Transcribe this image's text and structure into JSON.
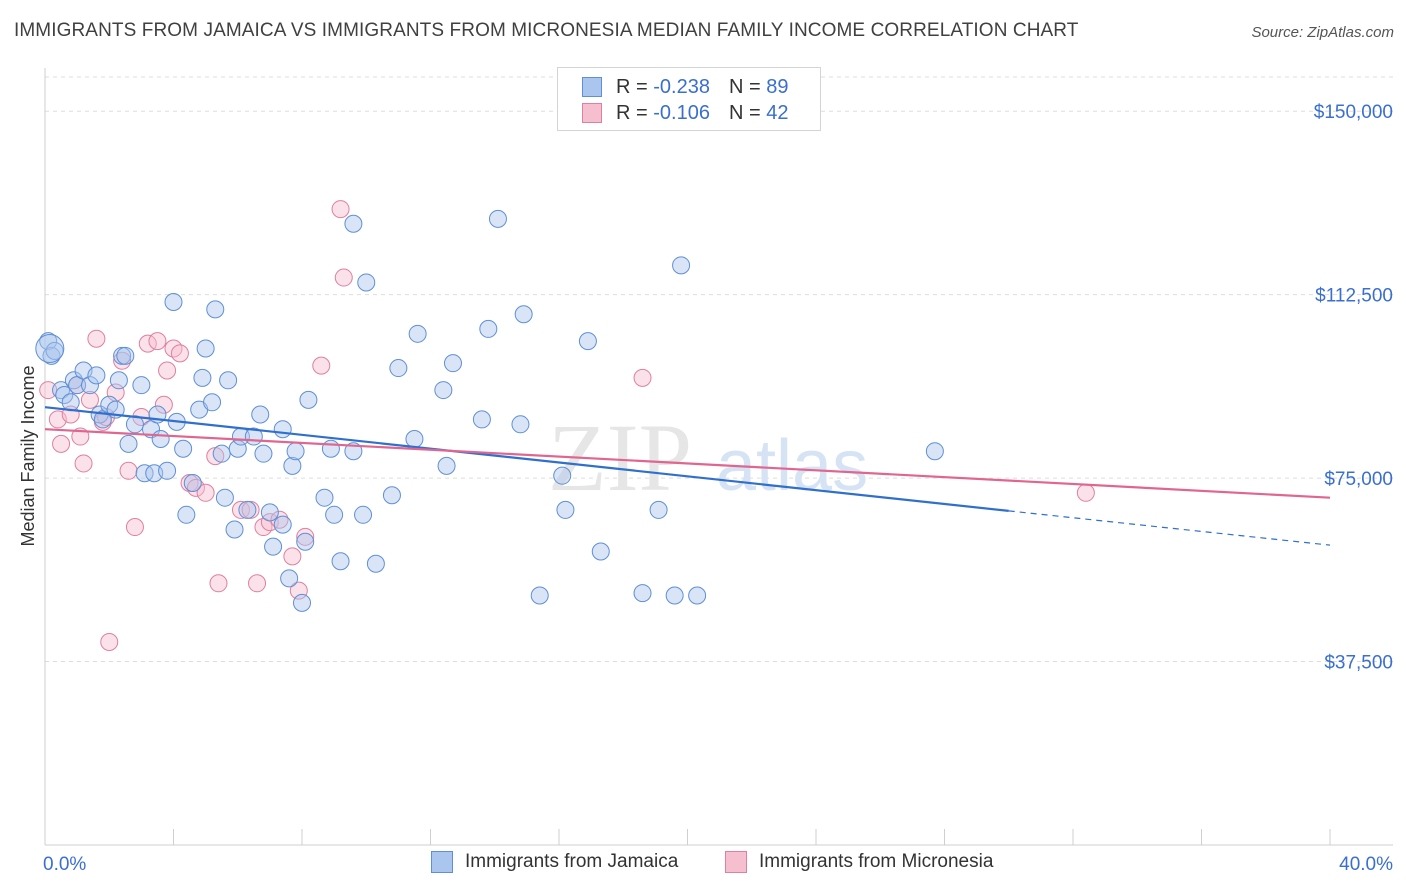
{
  "title": "IMMIGRANTS FROM JAMAICA VS IMMIGRANTS FROM MICRONESIA MEDIAN FAMILY INCOME CORRELATION CHART",
  "source": "Source: ZipAtlas.com",
  "watermark": {
    "zip": "ZIP",
    "atlas": "atlas"
  },
  "legend": {
    "rows": [
      {
        "r_label": "R =",
        "r_value": "-0.238",
        "n_label": "N =",
        "n_value": "89"
      },
      {
        "r_label": "R =",
        "r_value": "-0.106",
        "n_label": "N =",
        "n_value": "42"
      }
    ]
  },
  "colors": {
    "jamaica_fill": "#aac6ee",
    "jamaica_stroke": "#5f8fd6",
    "jamaica_line": "#2f6fce",
    "micronesia_fill": "#f6bfd0",
    "micronesia_stroke": "#e07fa0",
    "micronesia_line": "#e0668f",
    "axis_label": "#3a6fd0",
    "grid": "#dddddd"
  },
  "chart_data": {
    "type": "scatter",
    "xlabel": "",
    "ylabel": "Median Family Income",
    "x_tick_labels": {
      "min": "0.0%",
      "max": "40.0%"
    },
    "xlim": [
      0,
      40
    ],
    "ylim": [
      0,
      157000
    ],
    "y_ticks": [
      {
        "value": 37500,
        "label": "$37,500"
      },
      {
        "value": 75000,
        "label": "$75,000"
      },
      {
        "value": 112500,
        "label": "$112,500"
      },
      {
        "value": 150000,
        "label": "$150,000"
      }
    ],
    "grid": true,
    "legend_position": "top-center",
    "series": [
      {
        "name": "Immigrants from Jamaica",
        "r": -0.238,
        "n": 89,
        "trend": {
          "x_start": 0,
          "y_start": 89500,
          "x_solid_end": 30.0,
          "y_solid_end": 68300,
          "x_end": 40,
          "y_end": 61300
        },
        "points": [
          [
            0.1,
            103000
          ],
          [
            0.2,
            100000
          ],
          [
            0.3,
            101000
          ],
          [
            0.5,
            93000
          ],
          [
            0.6,
            92000
          ],
          [
            0.8,
            90500
          ],
          [
            0.9,
            95000
          ],
          [
            1.0,
            94000
          ],
          [
            1.2,
            97000
          ],
          [
            1.4,
            94000
          ],
          [
            1.6,
            96000
          ],
          [
            1.7,
            88000
          ],
          [
            1.8,
            87000
          ],
          [
            2.0,
            90000
          ],
          [
            2.2,
            89000
          ],
          [
            2.3,
            95000
          ],
          [
            2.4,
            100000
          ],
          [
            2.5,
            100000
          ],
          [
            2.6,
            82000
          ],
          [
            2.8,
            86000
          ],
          [
            3.0,
            94000
          ],
          [
            3.1,
            76000
          ],
          [
            3.3,
            85000
          ],
          [
            3.4,
            76000
          ],
          [
            3.5,
            88000
          ],
          [
            3.6,
            83000
          ],
          [
            3.8,
            76500
          ],
          [
            4.0,
            111000
          ],
          [
            4.1,
            86500
          ],
          [
            4.3,
            81000
          ],
          [
            4.4,
            67500
          ],
          [
            4.6,
            74000
          ],
          [
            4.8,
            89000
          ],
          [
            4.9,
            95500
          ],
          [
            5.0,
            101500
          ],
          [
            5.2,
            90500
          ],
          [
            5.3,
            109500
          ],
          [
            5.5,
            80000
          ],
          [
            5.6,
            71000
          ],
          [
            5.7,
            95000
          ],
          [
            5.9,
            64500
          ],
          [
            6.0,
            81000
          ],
          [
            6.1,
            83500
          ],
          [
            6.3,
            68500
          ],
          [
            6.5,
            83500
          ],
          [
            6.7,
            88000
          ],
          [
            6.8,
            80000
          ],
          [
            7.0,
            68000
          ],
          [
            7.1,
            61000
          ],
          [
            7.4,
            85000
          ],
          [
            7.6,
            54500
          ],
          [
            7.7,
            77500
          ],
          [
            7.8,
            80500
          ],
          [
            8.0,
            49500
          ],
          [
            8.1,
            62000
          ],
          [
            8.2,
            91000
          ],
          [
            8.7,
            71000
          ],
          [
            8.9,
            81000
          ],
          [
            9.0,
            67500
          ],
          [
            9.2,
            58000
          ],
          [
            9.6,
            127000
          ],
          [
            9.9,
            67500
          ],
          [
            10.0,
            115000
          ],
          [
            10.3,
            57500
          ],
          [
            10.8,
            71500
          ],
          [
            11.0,
            97500
          ],
          [
            11.5,
            83000
          ],
          [
            11.6,
            104500
          ],
          [
            12.4,
            93000
          ],
          [
            12.5,
            77500
          ],
          [
            12.7,
            98500
          ],
          [
            13.6,
            87000
          ],
          [
            13.8,
            105500
          ],
          [
            14.1,
            128000
          ],
          [
            14.8,
            86000
          ],
          [
            14.9,
            108500
          ],
          [
            15.4,
            51000
          ],
          [
            16.1,
            75500
          ],
          [
            16.2,
            68500
          ],
          [
            16.9,
            103000
          ],
          [
            17.3,
            60000
          ],
          [
            18.6,
            51500
          ],
          [
            19.1,
            68500
          ],
          [
            19.6,
            51000
          ],
          [
            19.8,
            118500
          ],
          [
            20.3,
            51000
          ],
          [
            27.7,
            80500
          ],
          [
            9.6,
            80500
          ],
          [
            7.4,
            65500
          ]
        ]
      },
      {
        "name": "Immigrants from Micronesia",
        "r": -0.106,
        "n": 42,
        "trend": {
          "x_start": 0,
          "y_start": 85000,
          "x_end": 40,
          "y_end": 71000
        },
        "points": [
          [
            0.1,
            93000
          ],
          [
            0.4,
            87000
          ],
          [
            0.5,
            82000
          ],
          [
            0.8,
            88000
          ],
          [
            1.0,
            94000
          ],
          [
            1.2,
            78000
          ],
          [
            1.4,
            91000
          ],
          [
            1.6,
            103500
          ],
          [
            1.8,
            86500
          ],
          [
            1.9,
            87500
          ],
          [
            2.0,
            41500
          ],
          [
            2.2,
            92500
          ],
          [
            2.4,
            99000
          ],
          [
            2.6,
            76500
          ],
          [
            2.8,
            65000
          ],
          [
            3.0,
            87500
          ],
          [
            3.2,
            102500
          ],
          [
            3.5,
            103000
          ],
          [
            3.7,
            90000
          ],
          [
            3.8,
            97000
          ],
          [
            4.0,
            101500
          ],
          [
            4.2,
            100500
          ],
          [
            4.5,
            74000
          ],
          [
            4.7,
            73000
          ],
          [
            5.0,
            72000
          ],
          [
            5.3,
            79500
          ],
          [
            5.4,
            53500
          ],
          [
            6.1,
            68500
          ],
          [
            6.4,
            68500
          ],
          [
            6.6,
            53500
          ],
          [
            6.8,
            65000
          ],
          [
            7.0,
            66000
          ],
          [
            7.3,
            66500
          ],
          [
            7.7,
            59000
          ],
          [
            7.9,
            52000
          ],
          [
            8.1,
            63000
          ],
          [
            8.6,
            98000
          ],
          [
            9.2,
            130000
          ],
          [
            9.3,
            116000
          ],
          [
            18.6,
            95500
          ],
          [
            32.4,
            72000
          ],
          [
            1.1,
            83500
          ]
        ]
      }
    ]
  }
}
